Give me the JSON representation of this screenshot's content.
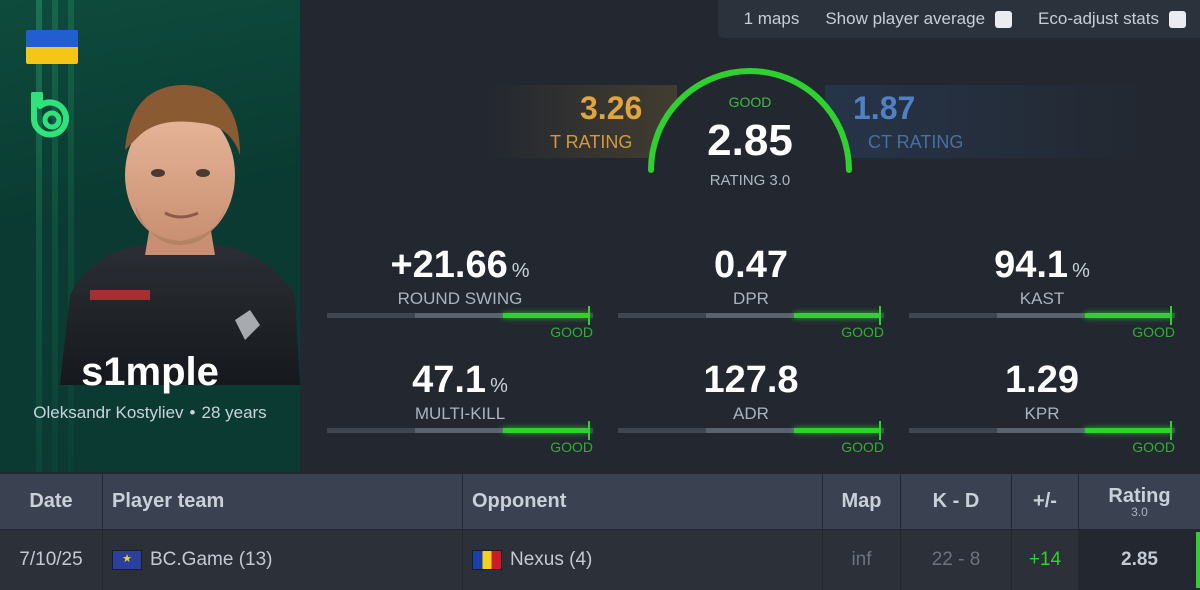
{
  "topbar": {
    "maps": "1 maps",
    "show_avg": "Show player average",
    "eco_adjust": "Eco-adjust stats"
  },
  "player": {
    "name": "s1mple",
    "full_name": "Oleksandr Kostyliev",
    "age": "28 years",
    "separator": "•",
    "country_flag_icon": "ukraine-flag-icon",
    "team_logo_icon": "bc-game-logo-icon"
  },
  "ratings": {
    "t_value": "3.26",
    "t_label": "T RATING",
    "ct_value": "1.87",
    "ct_label": "CT RATING",
    "main_value": "2.85",
    "main_label": "RATING 3.0",
    "main_quality": "GOOD",
    "gauge_fraction": 1.0
  },
  "stats": [
    {
      "value": "+21.66",
      "unit": "%",
      "label": "ROUND SWING",
      "quality": "GOOD",
      "bar_fraction": 0.99
    },
    {
      "value": "0.47",
      "unit": "",
      "label": "DPR",
      "quality": "GOOD",
      "bar_fraction": 0.99
    },
    {
      "value": "94.1",
      "unit": "%",
      "label": "KAST",
      "quality": "GOOD",
      "bar_fraction": 0.99
    },
    {
      "value": "47.1",
      "unit": "%",
      "label": "MULTI-KILL",
      "quality": "GOOD",
      "bar_fraction": 0.99
    },
    {
      "value": "127.8",
      "unit": "",
      "label": "ADR",
      "quality": "GOOD",
      "bar_fraction": 0.99
    },
    {
      "value": "1.29",
      "unit": "",
      "label": "KPR",
      "quality": "GOOD",
      "bar_fraction": 0.99
    }
  ],
  "table": {
    "headers": {
      "date": "Date",
      "team": "Player team",
      "opponent": "Opponent",
      "map": "Map",
      "kd": "K - D",
      "plusminus": "+/-",
      "rating": "Rating",
      "rating_sub": "3.0"
    },
    "rows": [
      {
        "date": "7/10/25",
        "team": "BC.Game (13)",
        "opponent": "Nexus (4)",
        "map": "inf",
        "kd": "22 - 8",
        "plusminus": "+14",
        "rating": "2.85"
      }
    ]
  },
  "colors": {
    "good": "#2ed12e",
    "t_side": "#e0a53c",
    "ct_side": "#4f82c4",
    "card_bg": "#0b3a33"
  }
}
